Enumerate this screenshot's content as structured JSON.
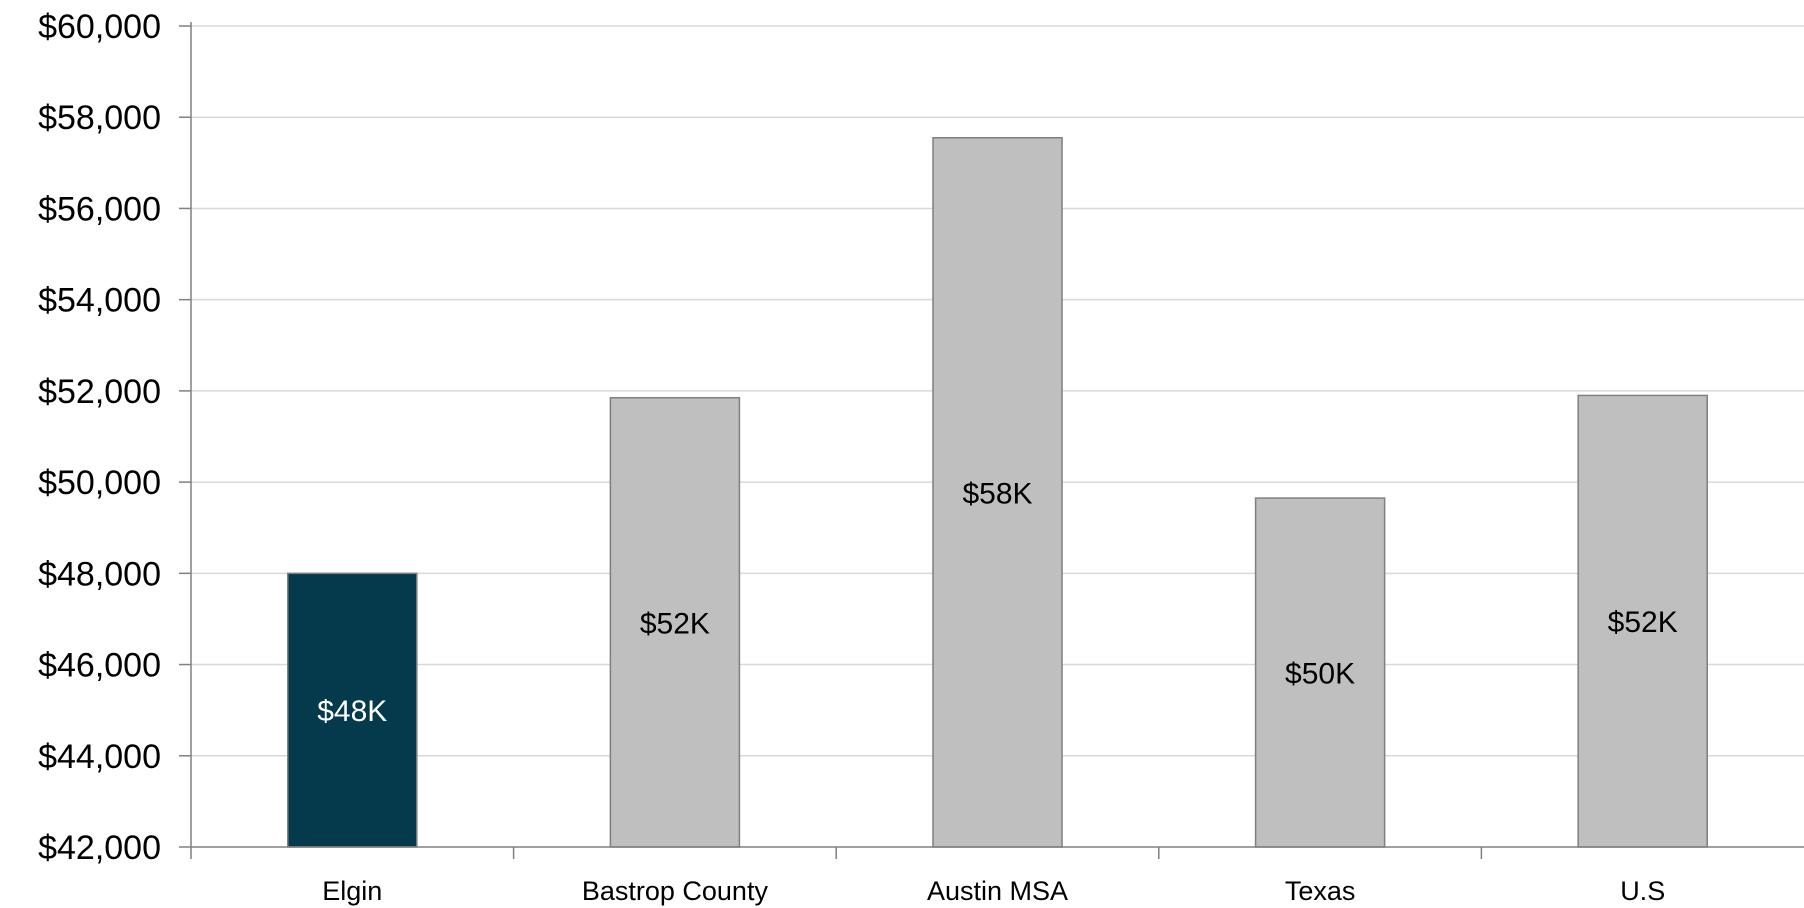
{
  "chart_data": {
    "type": "bar",
    "title": "",
    "xlabel": "",
    "ylabel": "",
    "categories": [
      "Elgin",
      "Bastrop County",
      "Austin MSA",
      "Texas",
      "U.S"
    ],
    "values": [
      48000,
      51850,
      57550,
      49650,
      51900
    ],
    "data_labels": [
      "$48K",
      "$52K",
      "$58K",
      "$50K",
      "$52K"
    ],
    "ylim": [
      42000,
      60000
    ],
    "y_ticks": [
      42000,
      44000,
      46000,
      48000,
      50000,
      52000,
      54000,
      56000,
      58000,
      60000
    ],
    "y_tick_labels": [
      "$42,000",
      "$44,000",
      "$46,000",
      "$48,000",
      "$50,000",
      "$52,000",
      "$54,000",
      "$56,000",
      "$58,000",
      "$60,000"
    ],
    "grid": true,
    "legend": "none",
    "colors": {
      "highlight_bar": "#053A4C",
      "default_bar": "#BFBFBF",
      "bar_stroke": "#7F7F7F",
      "gridline": "#D9D9D9",
      "axis": "#808080",
      "label_on_dark": "#FFFFFF",
      "label_on_light": "#000000"
    },
    "highlight_index": 0
  }
}
